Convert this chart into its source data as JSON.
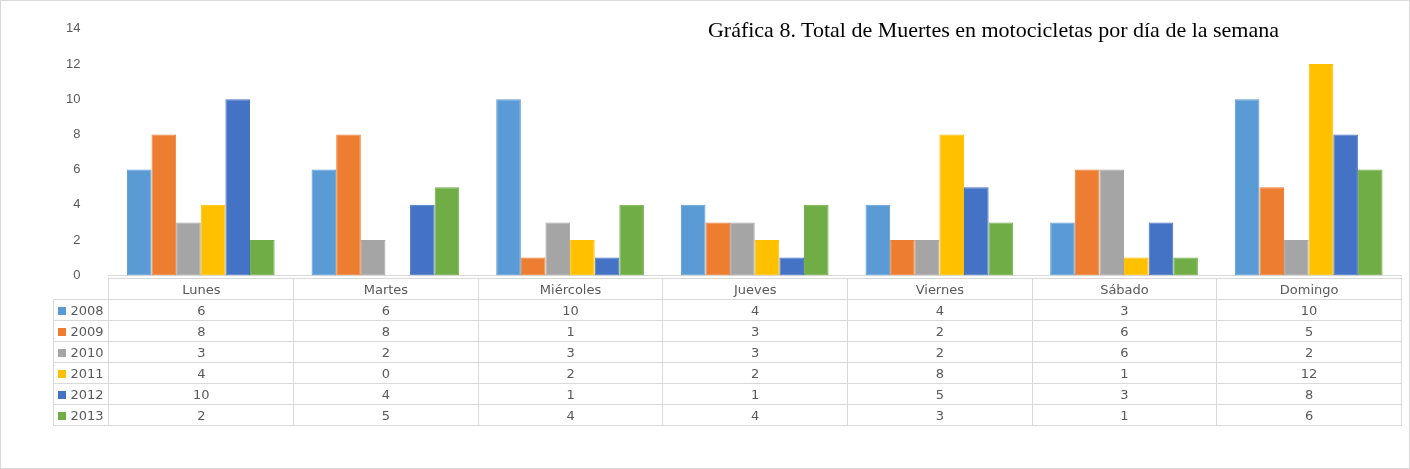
{
  "chart_data": {
    "type": "bar",
    "title": "Gráfica 8. Total de Muertes en motocicletas por día de la semana",
    "categories": [
      "Lunes",
      "Martes",
      "Miércoles",
      "Jueves",
      "Viernes",
      "Sábado",
      "Domingo"
    ],
    "series": [
      {
        "name": "2008",
        "color": "#5b9bd5",
        "values": [
          6,
          6,
          10,
          4,
          4,
          3,
          10
        ]
      },
      {
        "name": "2009",
        "color": "#ed7d31",
        "values": [
          8,
          8,
          1,
          3,
          2,
          6,
          5
        ]
      },
      {
        "name": "2010",
        "color": "#a5a5a5",
        "values": [
          3,
          2,
          3,
          3,
          2,
          6,
          2
        ]
      },
      {
        "name": "2011",
        "color": "#ffc000",
        "values": [
          4,
          0,
          2,
          2,
          8,
          1,
          12
        ]
      },
      {
        "name": "2012",
        "color": "#4472c4",
        "values": [
          10,
          4,
          1,
          1,
          5,
          3,
          8
        ]
      },
      {
        "name": "2013",
        "color": "#70ad47",
        "values": [
          2,
          5,
          4,
          4,
          3,
          1,
          6
        ]
      }
    ],
    "ylim": [
      0,
      14
    ],
    "yticks": [
      0,
      2,
      4,
      6,
      8,
      10,
      12,
      14
    ],
    "grid": false,
    "legend": "bottom",
    "data_labels": true
  }
}
